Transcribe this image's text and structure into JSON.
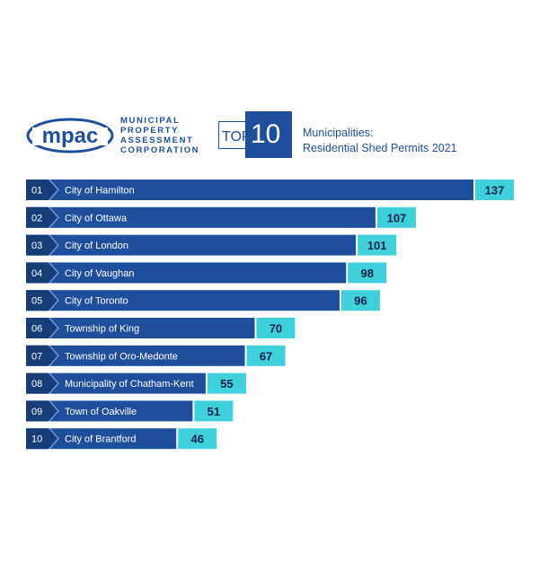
{
  "brand": {
    "logo_text": "mpac",
    "org_lines": [
      "MUNICIPAL",
      "PROPERTY",
      "ASSESSMENT",
      "CORPORATION"
    ],
    "top_word": "TOP",
    "top_number": "10",
    "subtitle_line1": "Municipalities:",
    "subtitle_line2": "Residential Shed Permits 2021"
  },
  "colors": {
    "bar": "#1e4f9c",
    "rank_box": "#163d78",
    "value_box": "#3fd0dd",
    "value_text": "#13224a",
    "brand_blue": "#1e4f9c"
  },
  "chart_data": {
    "type": "bar",
    "orientation": "horizontal",
    "title": "Municipalities: Residential Shed Permits 2021",
    "ranks": [
      "01",
      "02",
      "03",
      "04",
      "05",
      "06",
      "07",
      "08",
      "09",
      "10"
    ],
    "categories": [
      "City of Hamilton",
      "City of Ottawa",
      "City of London",
      "City of Vaughan",
      "City of Toronto",
      "Township of King",
      "Township of Oro-Medonte",
      "Municipality of Chatham-Kent",
      "Town of Oakville",
      "City of Brantford"
    ],
    "values": [
      137,
      107,
      101,
      98,
      96,
      70,
      67,
      55,
      51,
      46
    ],
    "xlim": [
      0,
      137
    ],
    "grid": false,
    "legend": "none"
  }
}
